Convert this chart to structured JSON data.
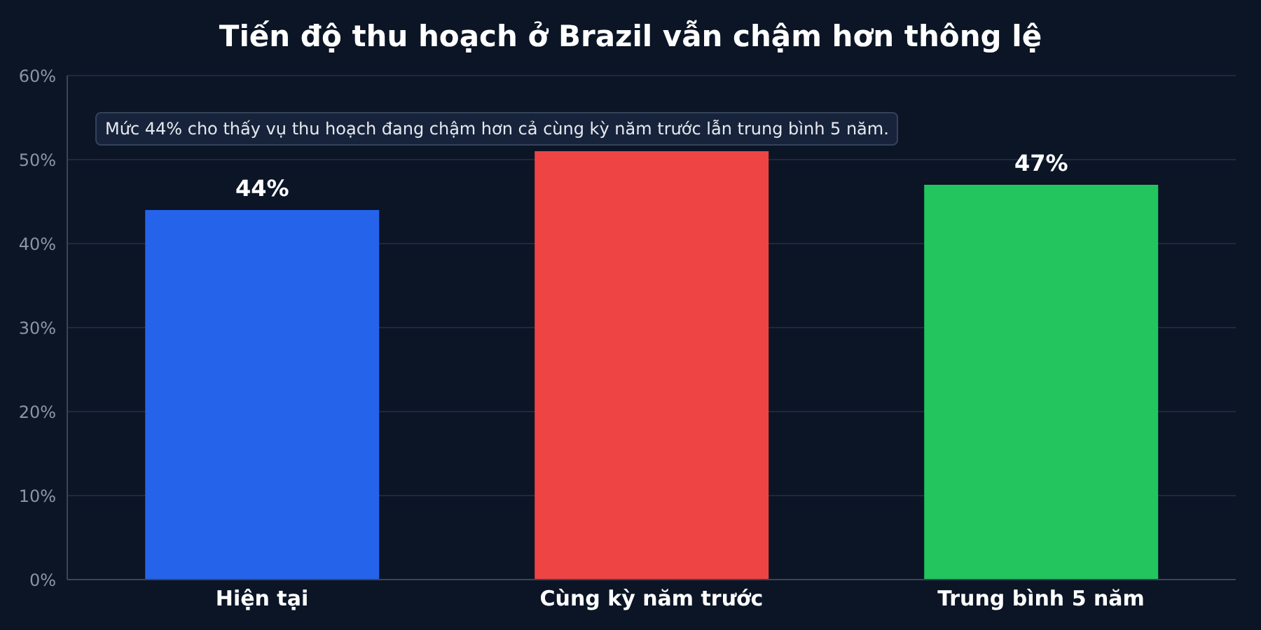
{
  "chart_data": {
    "type": "bar",
    "title": "Tiến độ thu hoạch ở Brazil vẫn chậm hơn thông lệ",
    "categories": [
      "Hiện tại",
      "Cùng kỳ năm trước",
      "Trung bình 5 năm"
    ],
    "values": [
      44,
      51,
      47
    ],
    "colors": [
      "#2563eb",
      "#ef4444",
      "#22c55e"
    ],
    "value_labels": [
      "44%",
      null,
      "47%"
    ],
    "ylim": [
      0,
      60
    ],
    "yticks": [
      {
        "value": 0,
        "label": "0%"
      },
      {
        "value": 10,
        "label": "10%"
      },
      {
        "value": 20,
        "label": "20%"
      },
      {
        "value": 30,
        "label": "30%"
      },
      {
        "value": 40,
        "label": "40%"
      },
      {
        "value": 50,
        "label": "50%"
      },
      {
        "value": 60,
        "label": "60%"
      }
    ],
    "grid": "y",
    "annotations": [
      "Mức 44% cho thấy vụ thu hoạch đang chậm hơn cả cùng kỳ năm trước lẫn trung bình 5 năm."
    ]
  }
}
